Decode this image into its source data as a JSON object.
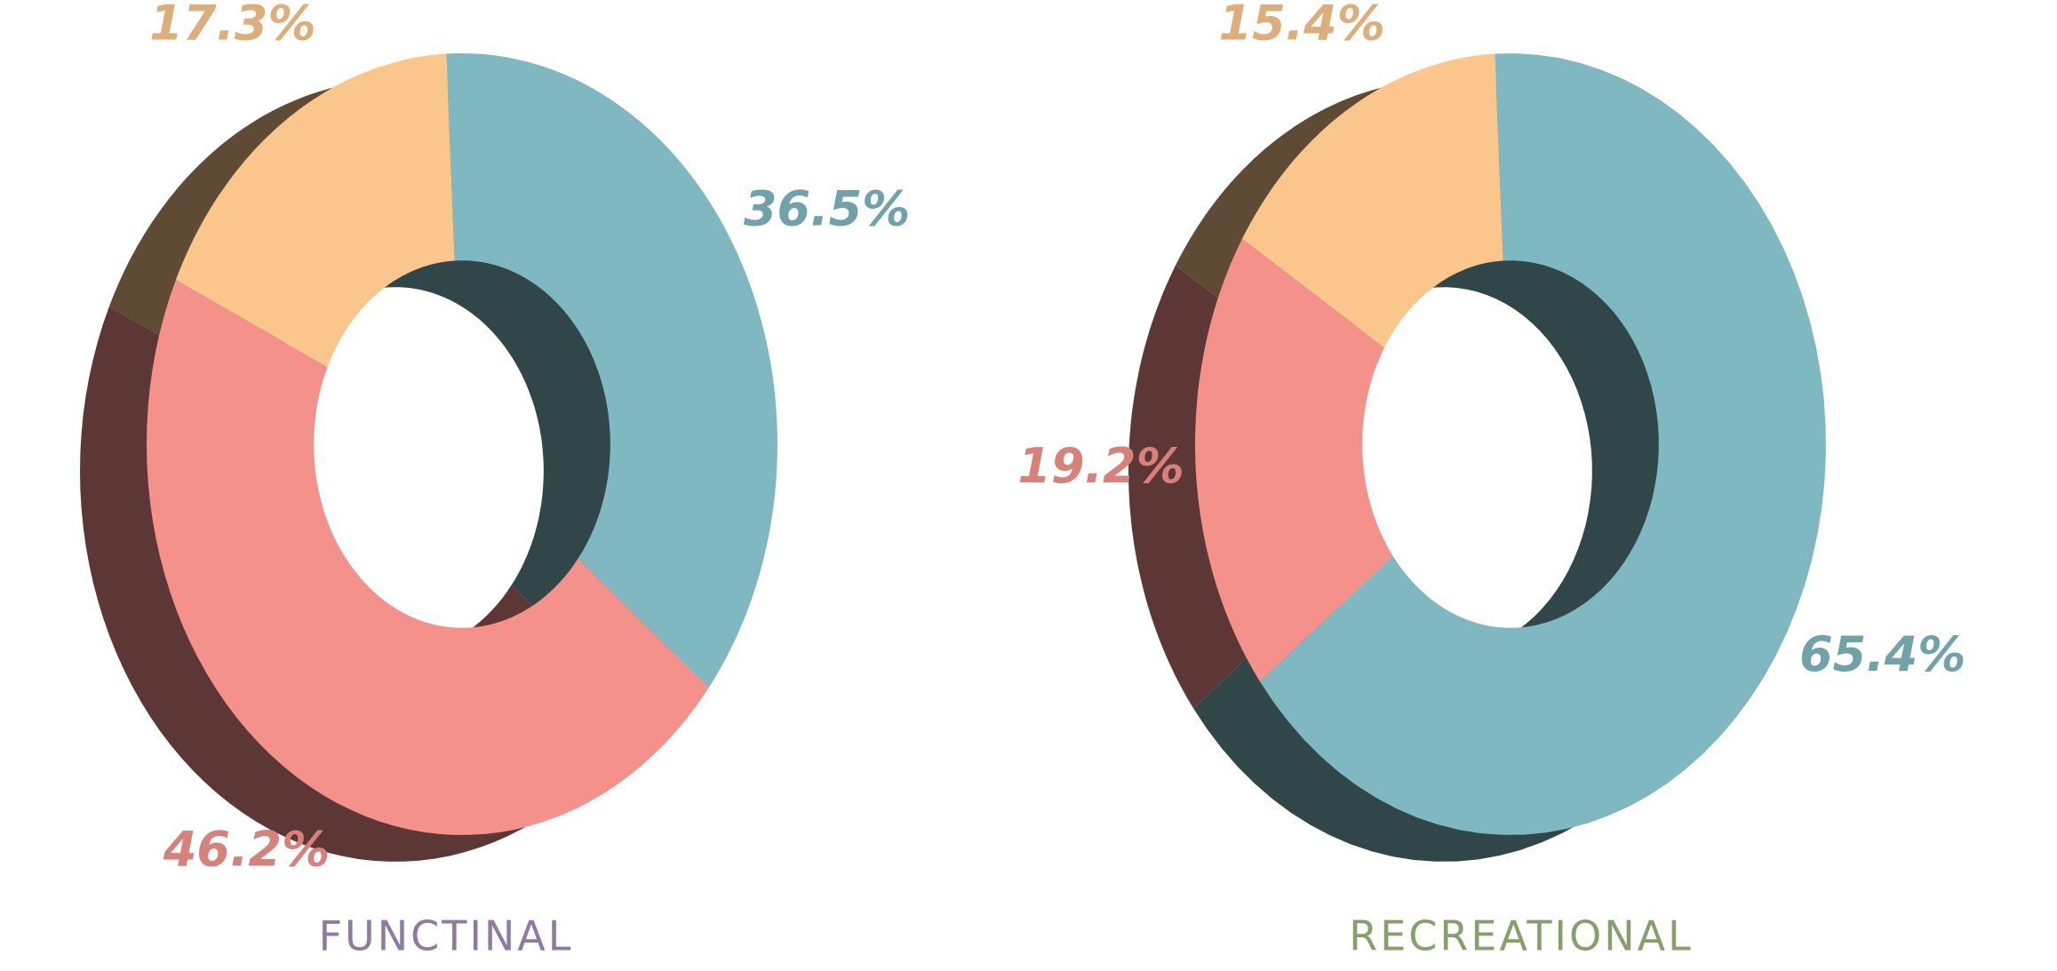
{
  "chart_data": [
    {
      "type": "donut",
      "title": "FUNCTINAL",
      "title_color": "#8e7aa3",
      "values": [
        36.5,
        46.2,
        17.3
      ],
      "value_labels": [
        "36.5%",
        "46.2%",
        "17.3%"
      ],
      "colors": [
        "#7fb8c1",
        "#f5918b",
        "#fbc68b"
      ]
    },
    {
      "type": "donut",
      "title": "RECREATIONAL",
      "title_color": "#86a06a",
      "values": [
        65.4,
        19.2,
        15.4
      ],
      "value_labels": [
        "65.4%",
        "19.2%",
        "15.4%"
      ],
      "colors": [
        "#7fb8c1",
        "#f5918b",
        "#fbc68b"
      ]
    }
  ]
}
